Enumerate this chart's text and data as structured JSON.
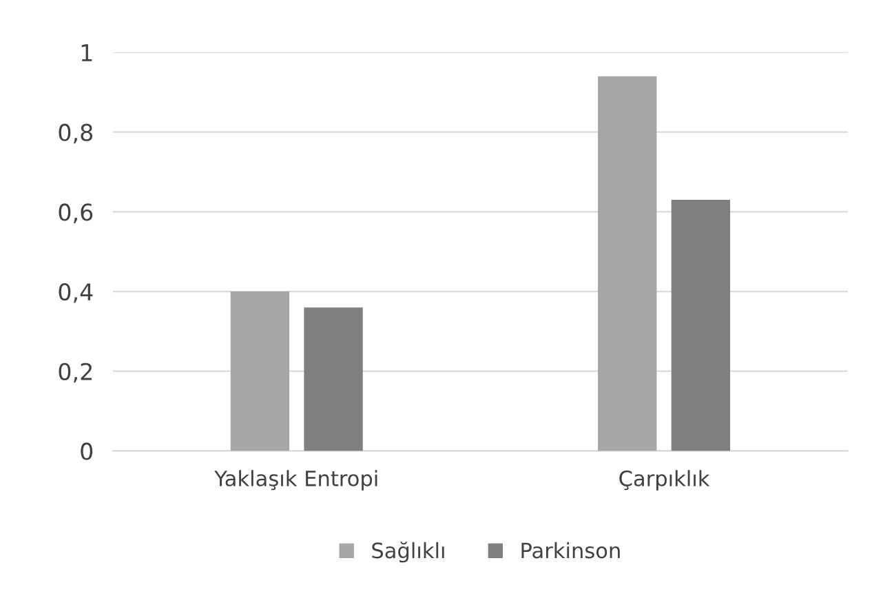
{
  "chart_data": {
    "type": "bar",
    "categories": [
      "Yaklaşık Entropi",
      "Çarpıklık"
    ],
    "series": [
      {
        "name": "Sağlıklı",
        "color": "#a6a6a6",
        "values": [
          0.4,
          0.94
        ]
      },
      {
        "name": "Parkinson",
        "color": "#7f7f7f",
        "values": [
          0.36,
          0.63
        ]
      }
    ],
    "ylim": [
      0,
      1
    ],
    "yticks": [
      0,
      {
        "value": 0.2,
        "label": "0,2"
      },
      {
        "value": 0.4,
        "label": "0,4"
      },
      {
        "value": 0.6,
        "label": "0,6"
      },
      {
        "value": 0.8,
        "label": "0,8"
      },
      1
    ],
    "grid": "y",
    "legend": "bottom"
  }
}
